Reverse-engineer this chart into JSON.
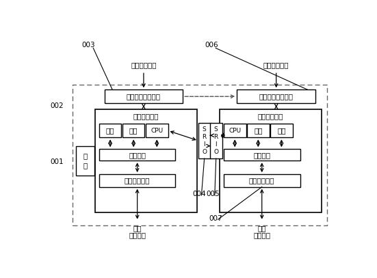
{
  "bg_color": "#ffffff",
  "line_color": "#000000",
  "font_size": 7.5,
  "small_font": 6.5,
  "labels": {
    "innet_input": "内网输入参数",
    "outnet_input": "外网输入参数",
    "innet_cfg": "内网参数配置接口",
    "outnet_cfg": "外网参数配置接口",
    "innet_sys": "内网处理系统",
    "outnet_sys": "外网处理系统",
    "storage": "存储",
    "memory": "内存",
    "cpu": "CPU",
    "databus": "数据总线",
    "innet_if": "内网网灶接口",
    "outnet_if": "外网网灶接口",
    "innet_data1": "内网",
    "innet_data2": "网灶数据",
    "outnet_data1": "外网",
    "outnet_data2": "网灶数据",
    "power1": "电",
    "power2": "源",
    "srio": "S\nR\nI\nO"
  }
}
